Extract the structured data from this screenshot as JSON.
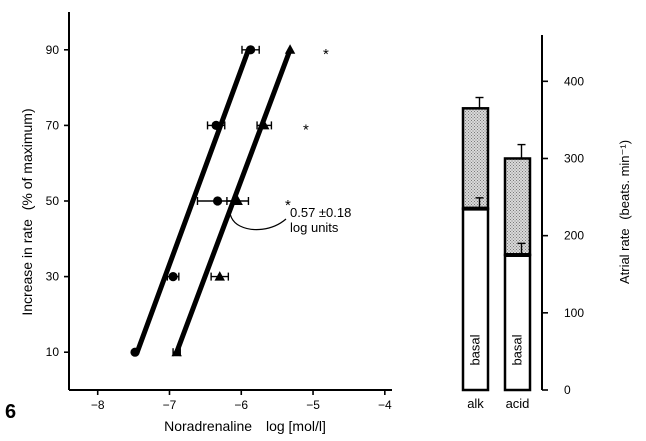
{
  "figure_number": "6",
  "chart_data": [
    {
      "type": "line",
      "xlabel": "Noradrenaline",
      "xlabel_units": "log [mol/l]",
      "ylabel": "Increase in rate",
      "ylabel_units": "(% of maximum)",
      "xlim": [
        -8.4,
        -3.9
      ],
      "ylim": [
        0,
        100
      ],
      "x_ticks": [
        -8,
        -7,
        -6,
        -5,
        -4
      ],
      "y_ticks": [
        10,
        30,
        50,
        70,
        90
      ],
      "series": [
        {
          "marker": "circle",
          "points": [
            {
              "x": -7.48,
              "y": 10,
              "xerr": 0
            },
            {
              "x": -6.95,
              "y": 30,
              "xerr": 0.08
            },
            {
              "x": -6.33,
              "y": 50,
              "xerr": 0.28
            },
            {
              "x": -6.35,
              "y": 70,
              "xerr": 0.12
            },
            {
              "x": -5.87,
              "y": 90,
              "xerr": 0.12
            }
          ],
          "fit": [
            [
              -7.45,
              10
            ],
            [
              -5.9,
              90
            ]
          ]
        },
        {
          "marker": "triangle",
          "points": [
            {
              "x": -6.9,
              "y": 10,
              "xerr": 0.05
            },
            {
              "x": -6.3,
              "y": 30,
              "xerr": 0.12
            },
            {
              "x": -6.05,
              "y": 50,
              "xerr": 0.15
            },
            {
              "x": -5.68,
              "y": 70,
              "xerr": 0.1
            },
            {
              "x": -5.32,
              "y": 90,
              "xerr": 0
            }
          ],
          "fit": [
            [
              -6.9,
              10
            ],
            [
              -5.32,
              90
            ]
          ]
        }
      ],
      "significance": [
        {
          "x": -4.82,
          "y": 90,
          "label": "*"
        },
        {
          "x": -5.1,
          "y": 70,
          "label": "*"
        },
        {
          "x": -5.35,
          "y": 50,
          "label": "*"
        }
      ],
      "annotation": {
        "line1": "0.57 ±0.18",
        "line2": "log units",
        "x": -6.0,
        "y": 44
      }
    },
    {
      "type": "bar",
      "categories": [
        "alk",
        "acid"
      ],
      "ylabel": "Atrial rate",
      "ylabel_units": "(beats. min⁻¹)",
      "ylim": [
        0,
        460
      ],
      "y_ticks": [
        0,
        100,
        200,
        300,
        400
      ],
      "inner_label": "basal",
      "basal": [
        235,
        175
      ],
      "basal_err": [
        14,
        15
      ],
      "total": [
        365,
        300
      ],
      "total_err": [
        14,
        18
      ]
    }
  ]
}
